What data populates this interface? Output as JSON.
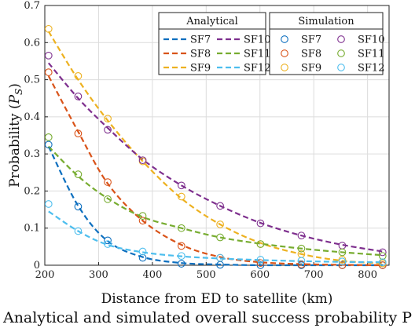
{
  "chart_data": {
    "type": "line",
    "title": "",
    "xlabel": "Distance from ED to satellite (km)",
    "ylabel": "Probability (P_S)",
    "xlim": [
      200,
      840
    ],
    "ylim": [
      0,
      0.7
    ],
    "xticks": [
      200,
      300,
      400,
      500,
      600,
      700,
      800
    ],
    "yticks": [
      0,
      0.1,
      0.2,
      0.3,
      0.4,
      0.5,
      0.6,
      0.7
    ],
    "grid": true,
    "legend": [
      {
        "header": "Analytical",
        "entries": [
          "SF7",
          "SF8",
          "SF9",
          "SF10",
          "SF11",
          "SF12"
        ],
        "style": "dashed"
      },
      {
        "header": "Simulation",
        "entries": [
          "SF7",
          "SF8",
          "SF9",
          "SF10",
          "SF11",
          "SF12"
        ],
        "style": "circle"
      }
    ],
    "series": [
      {
        "name": "SF7",
        "color": "#0d6fbf",
        "x": [
          207,
          262,
          317,
          382,
          454,
          526,
          601,
          677,
          753,
          828
        ],
        "analytical": [
          0.32,
          0.16,
          0.065,
          0.022,
          0.006,
          0.002,
          0.0,
          0.0,
          0.0,
          0.0
        ],
        "simulated": [
          0.325,
          0.158,
          0.067,
          0.02,
          0.004,
          0.001,
          0.0,
          0.0,
          0.0,
          0.0
        ]
      },
      {
        "name": "SF8",
        "color": "#d95319",
        "x": [
          207,
          262,
          317,
          382,
          454,
          526,
          601,
          677,
          753,
          828
        ],
        "analytical": [
          0.51,
          0.36,
          0.22,
          0.12,
          0.055,
          0.022,
          0.008,
          0.003,
          0.001,
          0.0
        ],
        "simulated": [
          0.52,
          0.355,
          0.224,
          0.12,
          0.052,
          0.02,
          0.006,
          0.002,
          0.0,
          0.0
        ]
      },
      {
        "name": "SF9",
        "color": "#edb120",
        "x": [
          207,
          262,
          317,
          382,
          454,
          526,
          601,
          677,
          753,
          828
        ],
        "analytical": [
          0.63,
          0.5,
          0.39,
          0.28,
          0.18,
          0.11,
          0.06,
          0.03,
          0.012,
          0.005
        ],
        "simulated": [
          0.637,
          0.51,
          0.395,
          0.28,
          0.185,
          0.11,
          0.057,
          0.03,
          0.015,
          0.005
        ]
      },
      {
        "name": "SF10",
        "color": "#7e2f8e",
        "x": [
          207,
          262,
          317,
          382,
          454,
          526,
          601,
          677,
          753,
          828
        ],
        "analytical": [
          0.545,
          0.45,
          0.37,
          0.285,
          0.215,
          0.16,
          0.114,
          0.08,
          0.055,
          0.037
        ],
        "simulated": [
          0.565,
          0.455,
          0.365,
          0.283,
          0.215,
          0.16,
          0.113,
          0.08,
          0.053,
          0.035
        ]
      },
      {
        "name": "SF11",
        "color": "#77ac30",
        "x": [
          207,
          262,
          317,
          382,
          454,
          526,
          601,
          677,
          753,
          828
        ],
        "analytical": [
          0.32,
          0.24,
          0.18,
          0.13,
          0.1,
          0.075,
          0.058,
          0.045,
          0.035,
          0.027
        ],
        "simulated": [
          0.345,
          0.245,
          0.178,
          0.133,
          0.1,
          0.075,
          0.057,
          0.045,
          0.035,
          0.025
        ]
      },
      {
        "name": "SF12",
        "color": "#4dbeee",
        "x": [
          207,
          262,
          317,
          382,
          454,
          526,
          601,
          677,
          753,
          828
        ],
        "analytical": [
          0.145,
          0.092,
          0.055,
          0.035,
          0.024,
          0.018,
          0.014,
          0.011,
          0.009,
          0.008
        ],
        "simulated": [
          0.165,
          0.092,
          0.057,
          0.037,
          0.025,
          0.02,
          0.015,
          0.012,
          0.01,
          0.008
        ]
      }
    ]
  },
  "caption_text": "Analytical and simulated overall success probability P"
}
